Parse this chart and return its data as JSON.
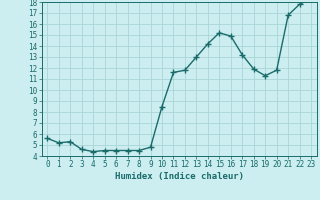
{
  "x": [
    0,
    1,
    2,
    3,
    4,
    5,
    6,
    7,
    8,
    9,
    10,
    11,
    12,
    13,
    14,
    15,
    16,
    17,
    18,
    19,
    20,
    21,
    22,
    23
  ],
  "y": [
    5.6,
    5.2,
    5.3,
    4.6,
    4.4,
    4.5,
    4.5,
    4.5,
    4.5,
    4.8,
    8.5,
    11.6,
    11.8,
    13.0,
    14.2,
    15.2,
    14.9,
    13.2,
    11.9,
    11.3,
    11.8,
    16.8,
    17.8,
    18.3
  ],
  "xlabel": "Humidex (Indice chaleur)",
  "xlim": [
    -0.5,
    23.5
  ],
  "ylim": [
    4,
    18
  ],
  "yticks": [
    4,
    5,
    6,
    7,
    8,
    9,
    10,
    11,
    12,
    13,
    14,
    15,
    16,
    17,
    18
  ],
  "xtick_labels": [
    "0",
    "1",
    "2",
    "3",
    "4",
    "5",
    "6",
    "7",
    "8",
    "9",
    "10",
    "11",
    "12",
    "13",
    "14",
    "15",
    "16",
    "17",
    "18",
    "19",
    "20",
    "21",
    "22",
    "23"
  ],
  "ytick_labels": [
    "4",
    "5",
    "6",
    "7",
    "8",
    "9",
    "10",
    "11",
    "12",
    "13",
    "14",
    "15",
    "16",
    "17",
    "18"
  ],
  "line_color": "#1a6b6b",
  "bg_color": "#cceef0",
  "grid_color": "#aad4d6",
  "text_color": "#1a6b6b",
  "xlabel_fontsize": 6.5,
  "tick_fontsize": 5.5
}
